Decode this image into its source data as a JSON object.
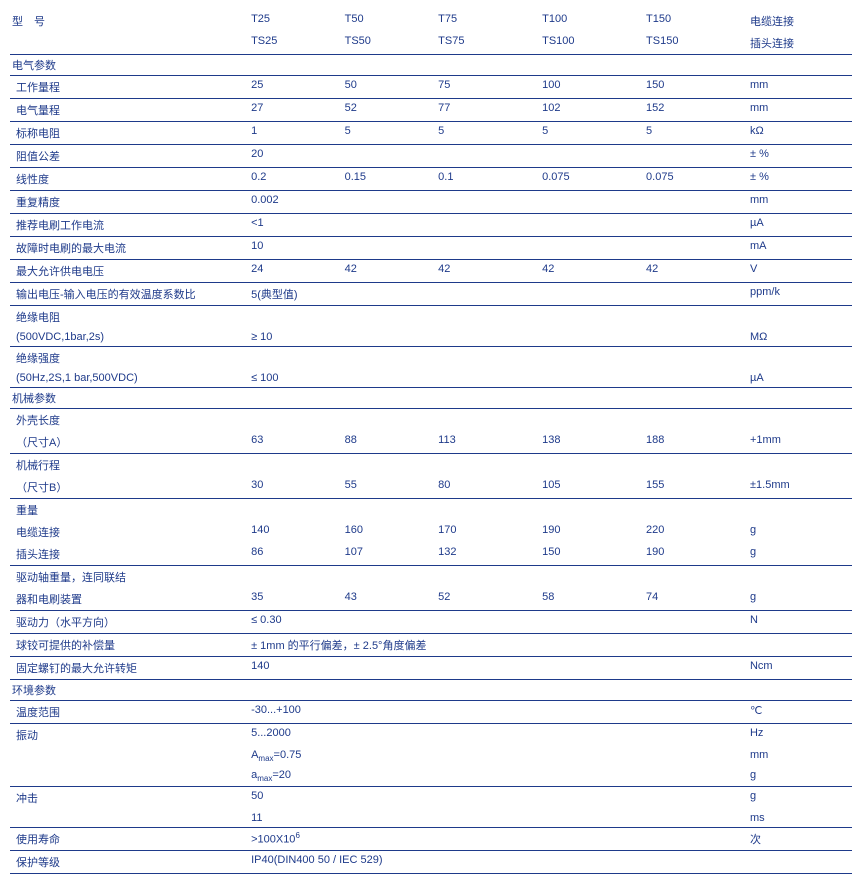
{
  "header": {
    "model_label": "型　号",
    "c1a": "T25",
    "c1b": "TS25",
    "c2a": "T50",
    "c2b": "TS50",
    "c3a": "T75",
    "c3b": "TS75",
    "c4a": "T100",
    "c4b": "TS100",
    "c5a": "T150",
    "c5b": "TS150",
    "u1": "电缆连接",
    "u2": "插头连接"
  },
  "sections": {
    "elec": "电气参数",
    "mech": "机械参数",
    "env": "环境参数"
  },
  "rows": {
    "workrange": {
      "label": "工作量程",
      "v": [
        "25",
        "50",
        "75",
        "100",
        "150"
      ],
      "unit": "mm"
    },
    "elecrange": {
      "label": "电气量程",
      "v": [
        "27",
        "52",
        "77",
        "102",
        "152"
      ],
      "unit": "mm"
    },
    "nominalres": {
      "label": "标称电阻",
      "v": [
        "1",
        "5",
        "5",
        "5",
        "5"
      ],
      "unit": "kΩ"
    },
    "restol": {
      "label": "阻值公差",
      "v": [
        "20",
        "",
        "",
        "",
        ""
      ],
      "unit": "± %"
    },
    "linearity": {
      "label": "线性度",
      "v": [
        "0.2",
        "0.15",
        "0.1",
        "0.075",
        "0.075"
      ],
      "unit": "± %"
    },
    "repeat": {
      "label": "重复精度",
      "v": [
        "0.002",
        "",
        "",
        "",
        ""
      ],
      "unit": "mm"
    },
    "reccurrent": {
      "label": "推荐电刷工作电流",
      "v": [
        "<1",
        "",
        "",
        "",
        ""
      ],
      "unit": "µA"
    },
    "faultcurrent": {
      "label": "故障时电刷的最大电流",
      "v": [
        "10",
        "",
        "",
        "",
        ""
      ],
      "unit": "mA"
    },
    "maxsupply": {
      "label": "最大允许供电电压",
      "v": [
        "24",
        "42",
        "42",
        "42",
        "42"
      ],
      "unit": "V"
    },
    "tempcoeff": {
      "label": "输出电压-输入电压的有效温度系数比",
      "v": [
        "5(典型值)",
        "",
        "",
        "",
        ""
      ],
      "unit": "ppm/k"
    },
    "insres": {
      "label1": "绝缘电阻",
      "label2": "(500VDC,1bar,2s)",
      "v": [
        "≥ 10",
        "",
        "",
        "",
        ""
      ],
      "unit": "MΩ"
    },
    "insstr": {
      "label1": "绝缘强度",
      "label2": "(50Hz,2S,1 bar,500VDC)",
      "v": [
        "≤ 100",
        "",
        "",
        "",
        ""
      ],
      "unit": "µA"
    },
    "housinglen": {
      "label1": "外壳长度",
      "label2": "（尺寸A）",
      "v": [
        "63",
        "88",
        "113",
        "138",
        "188"
      ],
      "unit": "+1mm"
    },
    "mechtravel": {
      "label1": "机械行程",
      "label2": "（尺寸B）",
      "v": [
        "30",
        "55",
        "80",
        "105",
        "155"
      ],
      "unit": "±1.5mm"
    },
    "weight_label": "重量",
    "weight_cable": {
      "label": "电缆连接",
      "v": [
        "140",
        "160",
        "170",
        "190",
        "220"
      ],
      "unit": "g"
    },
    "weight_plug": {
      "label": "插头连接",
      "v": [
        "86",
        "107",
        "132",
        "150",
        "190"
      ],
      "unit": "g"
    },
    "driveweight": {
      "label1": "驱动轴重量，连同联结",
      "label2": "器和电刷装置",
      "v": [
        "35",
        "43",
        "52",
        "58",
        "74"
      ],
      "unit": "g"
    },
    "driveforce": {
      "label": "驱动力（水平方向）",
      "v": [
        "≤ 0.30",
        "",
        "",
        "",
        ""
      ],
      "unit": "N"
    },
    "ballcomp": {
      "label": "球铰可提供的补偿量",
      "v": [
        "± 1mm 的平行偏差，± 2.5°角度偏差",
        "",
        "",
        "",
        ""
      ],
      "unit": ""
    },
    "screwtorque": {
      "label": "固定螺钉的最大允许转矩",
      "v": [
        "140",
        "",
        "",
        "",
        ""
      ],
      "unit": "Ncm"
    },
    "temprange": {
      "label": "温度范围",
      "v": [
        "-30...+100",
        "",
        "",
        "",
        ""
      ],
      "unit": "℃"
    },
    "vib1": {
      "label": "振动",
      "v": [
        "5...2000",
        "",
        "",
        "",
        ""
      ],
      "unit": "Hz"
    },
    "vib2": {
      "label": "",
      "v": [
        "Amax=0.75",
        "",
        "",
        "",
        ""
      ],
      "unit": "mm"
    },
    "vib3": {
      "label": "",
      "v": [
        "amax=20",
        "",
        "",
        "",
        ""
      ],
      "unit": "g"
    },
    "shock1": {
      "label": "冲击",
      "v": [
        "50",
        "",
        "",
        "",
        ""
      ],
      "unit": "g"
    },
    "shock2": {
      "label": "",
      "v": [
        "11",
        "",
        "",
        "",
        ""
      ],
      "unit": "ms"
    },
    "life": {
      "label": "使用寿命",
      "v": [
        ">100X10⁶",
        "",
        "",
        "",
        ""
      ],
      "unit": "次"
    },
    "ip": {
      "label": "保护等级",
      "v": [
        "IP40(DIN400 50 / IEC 529)",
        "",
        "",
        "",
        ""
      ],
      "unit": ""
    }
  }
}
